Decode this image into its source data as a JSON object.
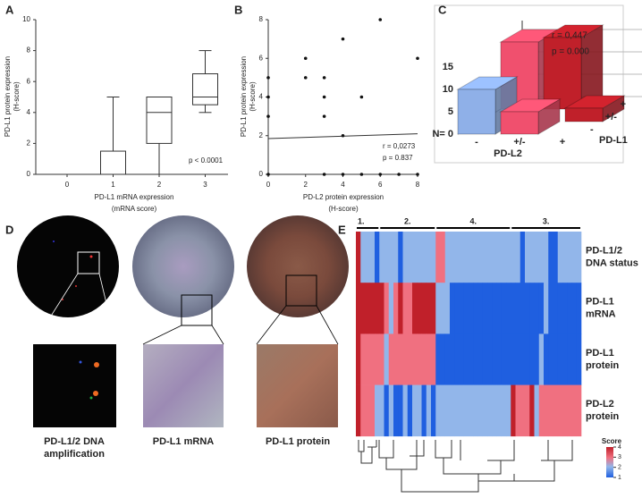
{
  "chart_data": [
    {
      "type": "box",
      "label": "A",
      "categories": [
        "0",
        "1",
        "2",
        "3"
      ],
      "boxes": [
        {
          "min": 0,
          "q1": 0,
          "median": 0,
          "q3": 0,
          "max": 0
        },
        {
          "min": 0,
          "q1": 0,
          "median": 0,
          "q3": 1.5,
          "max": 5
        },
        {
          "min": 0,
          "q1": 2,
          "median": 4,
          "q3": 5,
          "max": 5
        },
        {
          "min": 4,
          "q1": 4.5,
          "median": 5,
          "q3": 6.5,
          "max": 8
        }
      ],
      "ylim": [
        0,
        10
      ],
      "yticks": [
        0,
        2,
        4,
        6,
        8,
        10
      ],
      "x_label": [
        "PD-L1 mRNA expression",
        "(mRNA score)"
      ],
      "y_label": [
        "PD-L1 protein expression",
        "(H-score)"
      ],
      "annotation": "p < 0.0001"
    },
    {
      "type": "scatter",
      "label": "B",
      "points": {
        "x": [
          0,
          0,
          0,
          0,
          2,
          2,
          3,
          3,
          3,
          4,
          4,
          5,
          6,
          8,
          3,
          4,
          5,
          6,
          7,
          8
        ],
        "y": [
          5,
          4,
          3,
          0,
          6,
          5,
          5,
          4,
          3,
          7,
          2,
          4,
          8,
          6,
          0,
          0,
          0,
          0,
          0,
          0
        ]
      },
      "fit": {
        "x": [
          0,
          8
        ],
        "y": [
          1.85,
          2.1
        ]
      },
      "xlim": [
        0,
        8
      ],
      "xticks": [
        0,
        2,
        4,
        6,
        8
      ],
      "ylim": [
        0,
        8
      ],
      "yticks": [
        0,
        2,
        4,
        6,
        8
      ],
      "x_label": [
        "PD-L2 protein expression",
        "(H-score)"
      ],
      "y_label": [
        "PD-L1 protein expression",
        "(H-score)"
      ],
      "annotations": [
        "r = 0,0273",
        "p = 0.837"
      ]
    },
    {
      "type": "bar3d",
      "label": "C",
      "categories": [
        "-",
        "+/-",
        "+"
      ],
      "series": [
        {
          "name": "-",
          "values": [
            10,
            5,
            null
          ],
          "colors": [
            "#8fb0e8",
            "#f0506e",
            null
          ]
        },
        {
          "name": "+/-",
          "values": [
            null,
            null,
            3
          ],
          "colors": [
            null,
            null,
            "#c0202a"
          ]
        },
        {
          "name": "+",
          "values": [
            15,
            16,
            null
          ],
          "colors": [
            "#f0506e",
            "#c0202a",
            null
          ]
        }
      ],
      "ylim": [
        0,
        17
      ],
      "yticks": [
        {
          "value": 0,
          "label": "N= 0"
        },
        5,
        10,
        15
      ],
      "x_label": "PD-L2",
      "z_label": "PD-L1",
      "annotations": [
        "r = 0,447",
        "p = 0.000"
      ]
    },
    {
      "type": "heatmap",
      "label": "E",
      "rows": [
        [
          "PD-L1/2",
          "DNA status"
        ],
        [
          "PD-L1",
          "mRNA"
        ],
        [
          "PD-L1",
          "protein"
        ],
        [
          "PD-L2",
          "protein"
        ]
      ],
      "clusters": [
        {
          "label": "1.",
          "size": 5
        },
        {
          "label": "2.",
          "size": 12
        },
        {
          "label": "4.",
          "size": 16
        },
        {
          "label": "3.",
          "size": 15
        }
      ],
      "values": [
        [
          4,
          2,
          2,
          2,
          1,
          2,
          2,
          2,
          2,
          1,
          2,
          2,
          2,
          2,
          2,
          2,
          2,
          3,
          3,
          2,
          2,
          2,
          2,
          2,
          2,
          2,
          2,
          2,
          2,
          2,
          2,
          2,
          2,
          2,
          2,
          1,
          2,
          2,
          2,
          2,
          2,
          1,
          1,
          2,
          2,
          2,
          2,
          2
        ],
        [
          4,
          4,
          4,
          4,
          4,
          4,
          3,
          2,
          3,
          4,
          3,
          3,
          4,
          4,
          4,
          4,
          4,
          2,
          2,
          2,
          1,
          1,
          1,
          1,
          1,
          1,
          1,
          1,
          1,
          1,
          1,
          1,
          1,
          1,
          1,
          1,
          1,
          1,
          1,
          1,
          2,
          1,
          1,
          1,
          1,
          1,
          1,
          1
        ],
        [
          4,
          3,
          3,
          3,
          3,
          3,
          2,
          3,
          3,
          3,
          3,
          3,
          3,
          3,
          3,
          3,
          3,
          1,
          1,
          1,
          1,
          1,
          1,
          1,
          1,
          1,
          1,
          1,
          1,
          1,
          1,
          1,
          1,
          1,
          1,
          1,
          1,
          1,
          1,
          2,
          1,
          1,
          1,
          1,
          1,
          1,
          1,
          1
        ],
        [
          4,
          3,
          3,
          3,
          2,
          2,
          1,
          2,
          1,
          1,
          2,
          1,
          2,
          2,
          1,
          2,
          1,
          2,
          2,
          2,
          2,
          2,
          2,
          2,
          2,
          2,
          2,
          2,
          2,
          2,
          2,
          2,
          2,
          4,
          3,
          3,
          3,
          4,
          2,
          3,
          3,
          3,
          3,
          3,
          3,
          3,
          3,
          3
        ]
      ],
      "color_scale": [
        {
          "value": 4,
          "color": "#c0202a"
        },
        {
          "value": 3,
          "color": "#f07080"
        },
        {
          "value": 2,
          "color": "#92b6ea"
        },
        {
          "value": 1,
          "color": "#1f5fe0"
        }
      ],
      "legend_title": "Score"
    }
  ],
  "images": {
    "label": "D",
    "captions": [
      [
        "PD-L1/2 DNA",
        "amplification"
      ],
      [
        "PD-L1 mRNA"
      ],
      [
        "PD-L1 protein"
      ]
    ]
  }
}
